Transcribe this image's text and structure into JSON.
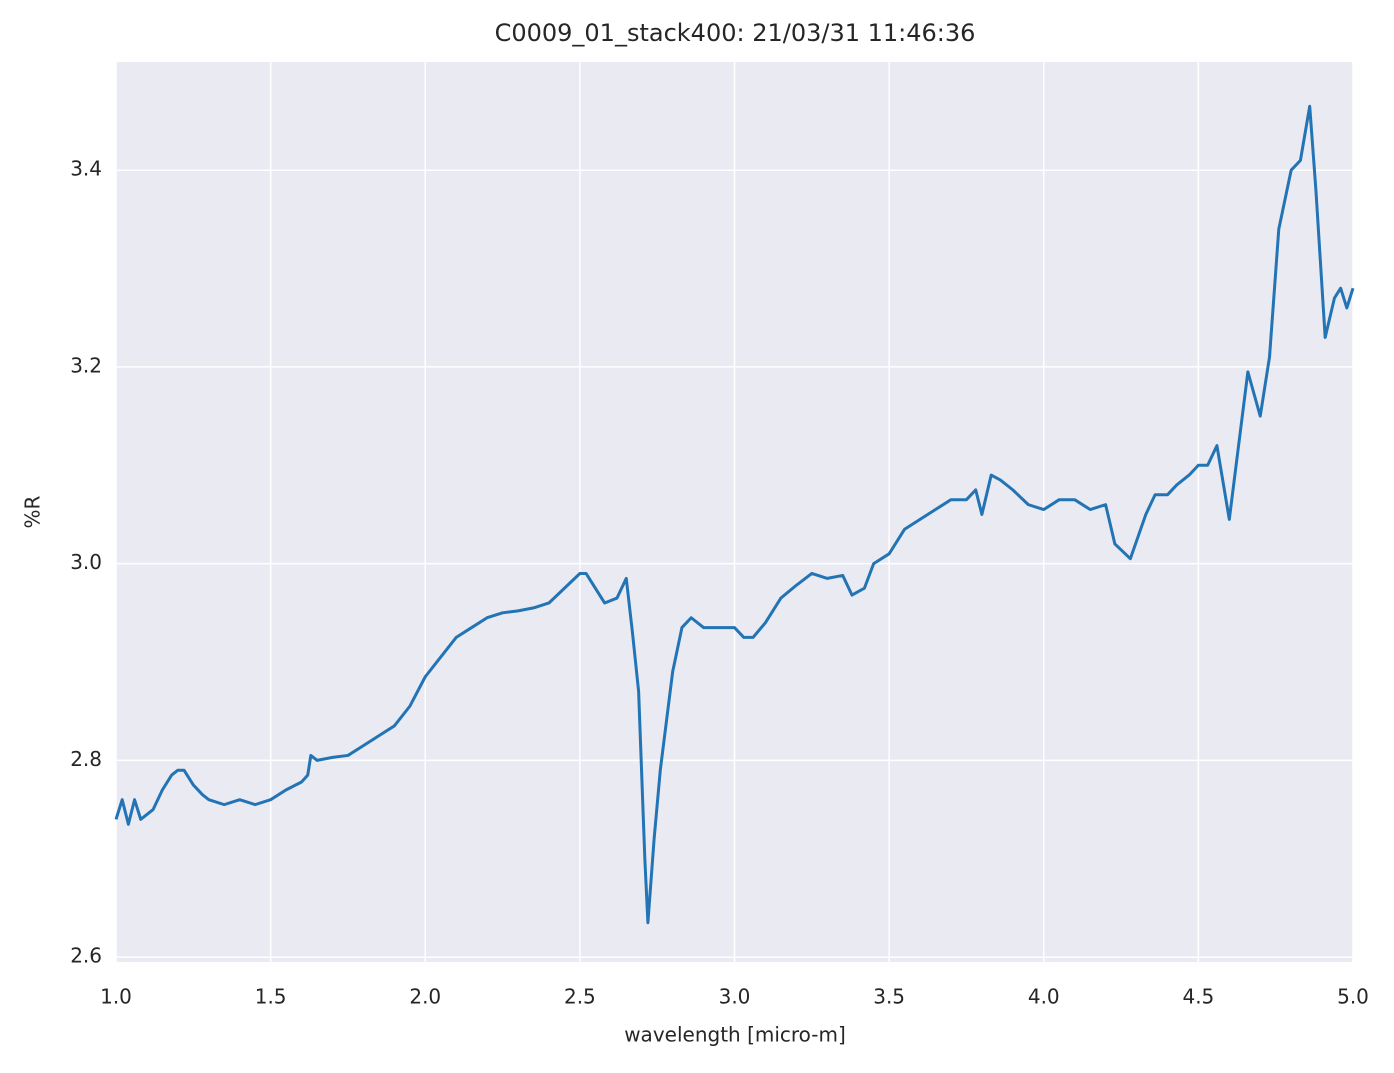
{
  "chart_data": {
    "type": "line",
    "title": "C0009_01_stack400:  21/03/31 11:46:36",
    "x_label": "wavelength [micro-m]",
    "y_label": "%R",
    "xlim": [
      1.0,
      5.0
    ],
    "ylim": [
      2.595,
      3.51
    ],
    "xticks": [
      {
        "value": 1.0,
        "label": "1.0"
      },
      1.5,
      {
        "value": 2.0,
        "label": "2.0"
      },
      2.5,
      {
        "value": 3.0,
        "label": "3.0"
      },
      3.5,
      {
        "value": 4.0,
        "label": "4.0"
      },
      4.5,
      {
        "value": 5.0,
        "label": "5.0"
      }
    ],
    "yticks": [
      2.6,
      2.8,
      {
        "value": 3.0,
        "label": "3.0"
      },
      3.2,
      3.4
    ],
    "grid": true,
    "x": [
      1.0,
      1.02,
      1.04,
      1.06,
      1.08,
      1.1,
      1.12,
      1.15,
      1.18,
      1.2,
      1.22,
      1.25,
      1.28,
      1.3,
      1.35,
      1.4,
      1.45,
      1.5,
      1.55,
      1.6,
      1.62,
      1.63,
      1.65,
      1.7,
      1.75,
      1.8,
      1.85,
      1.9,
      1.95,
      2.0,
      2.05,
      2.1,
      2.15,
      2.2,
      2.25,
      2.3,
      2.35,
      2.4,
      2.45,
      2.5,
      2.52,
      2.55,
      2.58,
      2.62,
      2.65,
      2.67,
      2.69,
      2.71,
      2.72,
      2.74,
      2.76,
      2.78,
      2.8,
      2.83,
      2.86,
      2.9,
      2.95,
      3.0,
      3.03,
      3.06,
      3.1,
      3.15,
      3.2,
      3.25,
      3.3,
      3.35,
      3.38,
      3.42,
      3.45,
      3.5,
      3.55,
      3.6,
      3.65,
      3.7,
      3.75,
      3.78,
      3.8,
      3.83,
      3.86,
      3.9,
      3.95,
      4.0,
      4.05,
      4.1,
      4.15,
      4.2,
      4.23,
      4.28,
      4.33,
      4.36,
      4.4,
      4.43,
      4.47,
      4.5,
      4.53,
      4.56,
      4.6,
      4.63,
      4.66,
      4.7,
      4.73,
      4.76,
      4.8,
      4.83,
      4.86,
      4.88,
      4.91,
      4.94,
      4.96,
      4.98,
      5.0
    ],
    "series": [
      {
        "name": "%R",
        "color": "#2274b5",
        "values": [
          2.74,
          2.76,
          2.735,
          2.76,
          2.74,
          2.745,
          2.75,
          2.77,
          2.785,
          2.79,
          2.79,
          2.775,
          2.765,
          2.76,
          2.755,
          2.76,
          2.755,
          2.76,
          2.77,
          2.778,
          2.785,
          2.805,
          2.8,
          2.803,
          2.805,
          2.815,
          2.825,
          2.835,
          2.855,
          2.885,
          2.905,
          2.925,
          2.935,
          2.945,
          2.95,
          2.952,
          2.955,
          2.96,
          2.975,
          2.99,
          2.99,
          2.975,
          2.96,
          2.965,
          2.985,
          2.93,
          2.87,
          2.7,
          2.635,
          2.72,
          2.79,
          2.84,
          2.89,
          2.935,
          2.945,
          2.935,
          2.935,
          2.935,
          2.925,
          2.925,
          2.94,
          2.965,
          2.978,
          2.99,
          2.985,
          2.988,
          2.968,
          2.975,
          3.0,
          3.01,
          3.035,
          3.045,
          3.055,
          3.065,
          3.065,
          3.075,
          3.05,
          3.09,
          3.085,
          3.075,
          3.06,
          3.055,
          3.065,
          3.065,
          3.055,
          3.06,
          3.02,
          3.005,
          3.05,
          3.07,
          3.07,
          3.08,
          3.09,
          3.1,
          3.1,
          3.12,
          3.045,
          3.12,
          3.195,
          3.15,
          3.21,
          3.34,
          3.4,
          3.41,
          3.465,
          3.38,
          3.23,
          3.27,
          3.28,
          3.26,
          3.28
        ]
      }
    ]
  }
}
